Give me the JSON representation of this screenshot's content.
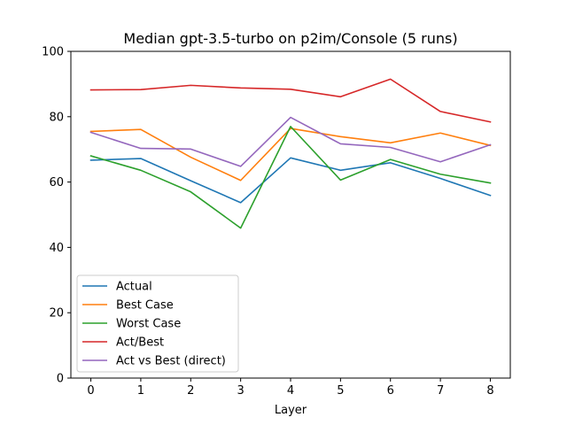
{
  "chart_data": {
    "type": "line",
    "title": "Median gpt-3.5-turbo on p2im/Console (5 runs)",
    "xlabel": "Layer",
    "ylabel": "",
    "x": [
      0,
      1,
      2,
      3,
      4,
      5,
      6,
      7,
      8
    ],
    "xlim": [
      -0.4,
      8.4
    ],
    "ylim": [
      0,
      100
    ],
    "xticks": [
      "0",
      "1",
      "2",
      "3",
      "4",
      "5",
      "6",
      "7",
      "8"
    ],
    "yticks": [
      "0",
      "20",
      "40",
      "60",
      "80",
      "100"
    ],
    "grid": false,
    "legend_position": "lower-left",
    "series": [
      {
        "name": "Actual",
        "color": "#1f77b4",
        "values": [
          66.7,
          67.2,
          60.4,
          53.7,
          67.4,
          63.6,
          65.9,
          61.1,
          55.9
        ]
      },
      {
        "name": "Best Case",
        "color": "#ff7f0e",
        "values": [
          75.5,
          76.1,
          67.6,
          60.5,
          76.4,
          73.9,
          72.0,
          75.0,
          71.2
        ]
      },
      {
        "name": "Worst Case",
        "color": "#2ca02c",
        "values": [
          68.0,
          63.6,
          57.0,
          45.9,
          77.0,
          60.6,
          66.9,
          62.4,
          59.7
        ]
      },
      {
        "name": "Act/Best",
        "color": "#d62728",
        "values": [
          88.2,
          88.3,
          89.6,
          88.8,
          88.4,
          86.1,
          91.5,
          81.6,
          78.4
        ]
      },
      {
        "name": "Act vs Best (direct)",
        "color": "#9467bd",
        "values": [
          75.2,
          70.3,
          70.1,
          64.8,
          79.8,
          71.7,
          70.6,
          66.2,
          71.4
        ]
      }
    ]
  }
}
